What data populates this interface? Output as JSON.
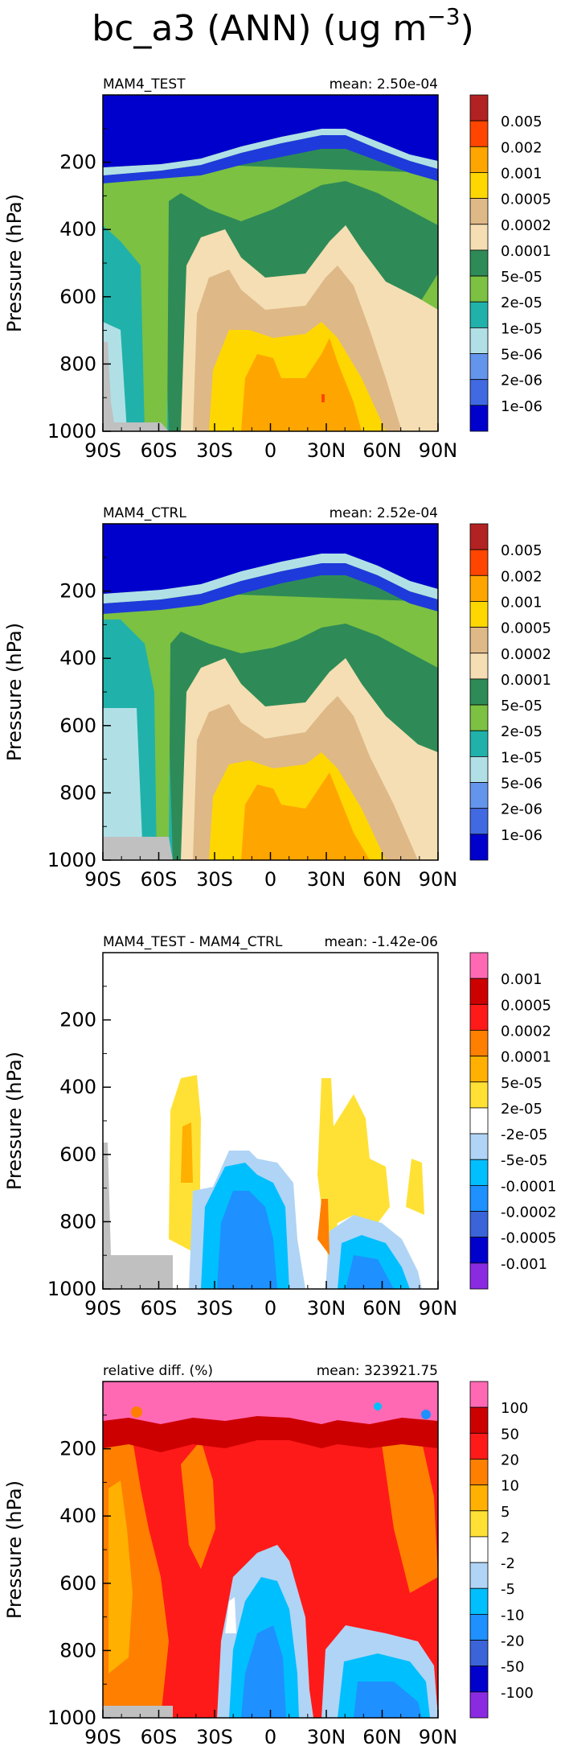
{
  "figure": {
    "title_main": "bc_a3 (ANN) (ug m",
    "title_exp": "−3",
    "title_close": ")"
  },
  "chart_data": [
    {
      "type": "heatmap",
      "left_label": "MAM4_TEST",
      "right_label": "mean: 2.50e-04",
      "ylabel": "Pressure (hPa)",
      "xticks": [
        "90S",
        "60S",
        "30S",
        "0",
        "30N",
        "60N",
        "90N"
      ],
      "yticks": [
        "200",
        "400",
        "600",
        "800",
        "1000"
      ],
      "colorbar_labels": [
        "0.005",
        "0.002",
        "0.001",
        "0.0005",
        "0.0002",
        "0.0001",
        "5e-05",
        "2e-05",
        "1e-05",
        "5e-06",
        "2e-06",
        "1e-06"
      ],
      "colors": [
        "#b22222",
        "#ff4500",
        "#ffa500",
        "#ffd700",
        "#deb887",
        "#f5deb3",
        "#2e8b57",
        "#7cc142",
        "#20b2aa",
        "#b0e0e6",
        "#6495ed",
        "#4169e1",
        "#0000cd"
      ]
    },
    {
      "type": "heatmap",
      "left_label": "MAM4_CTRL",
      "right_label": "mean: 2.52e-04",
      "ylabel": "Pressure (hPa)",
      "xticks": [
        "90S",
        "60S",
        "30S",
        "0",
        "30N",
        "60N",
        "90N"
      ],
      "yticks": [
        "200",
        "400",
        "600",
        "800",
        "1000"
      ],
      "colorbar_labels": [
        "0.005",
        "0.002",
        "0.001",
        "0.0005",
        "0.0002",
        "0.0001",
        "5e-05",
        "2e-05",
        "1e-05",
        "5e-06",
        "2e-06",
        "1e-06"
      ],
      "colors": [
        "#b22222",
        "#ff4500",
        "#ffa500",
        "#ffd700",
        "#deb887",
        "#f5deb3",
        "#2e8b57",
        "#7cc142",
        "#20b2aa",
        "#b0e0e6",
        "#6495ed",
        "#4169e1",
        "#0000cd"
      ]
    },
    {
      "type": "heatmap",
      "left_label": "MAM4_TEST - MAM4_CTRL",
      "right_label": "mean: -1.42e-06",
      "ylabel": "Pressure (hPa)",
      "xticks": [
        "90S",
        "60S",
        "30S",
        "0",
        "30N",
        "60N",
        "90N"
      ],
      "yticks": [
        "200",
        "400",
        "600",
        "800",
        "1000"
      ],
      "colorbar_labels": [
        "0.001",
        "0.0005",
        "0.0002",
        "0.0001",
        "5e-05",
        "2e-05",
        "-2e-05",
        "-5e-05",
        "-0.0001",
        "-0.0002",
        "-0.0005",
        "-0.001"
      ],
      "colors": [
        "#ff69b4",
        "#cd0000",
        "#ff1a1a",
        "#ff7f00",
        "#ffb000",
        "#ffe135",
        "#ffffff",
        "#b0d4f5",
        "#00bfff",
        "#1e90ff",
        "#3a64d8",
        "#0000cd",
        "#8a2be2"
      ]
    },
    {
      "type": "heatmap",
      "left_label": "relative diff. (%)",
      "right_label": "mean: 323921.75",
      "ylabel": "Pressure (hPa)",
      "xticks": [
        "90S",
        "60S",
        "30S",
        "0",
        "30N",
        "60N",
        "90N"
      ],
      "yticks": [
        "200",
        "400",
        "600",
        "800",
        "1000"
      ],
      "colorbar_labels": [
        "100",
        "50",
        "20",
        "10",
        "5",
        "2",
        "-2",
        "-5",
        "-10",
        "-20",
        "-50",
        "-100"
      ],
      "colors": [
        "#ff69b4",
        "#cd0000",
        "#ff1a1a",
        "#ff7f00",
        "#ffb000",
        "#ffe135",
        "#ffffff",
        "#b0d4f5",
        "#00bfff",
        "#1e90ff",
        "#3a64d8",
        "#0000cd",
        "#8a2be2"
      ]
    }
  ]
}
